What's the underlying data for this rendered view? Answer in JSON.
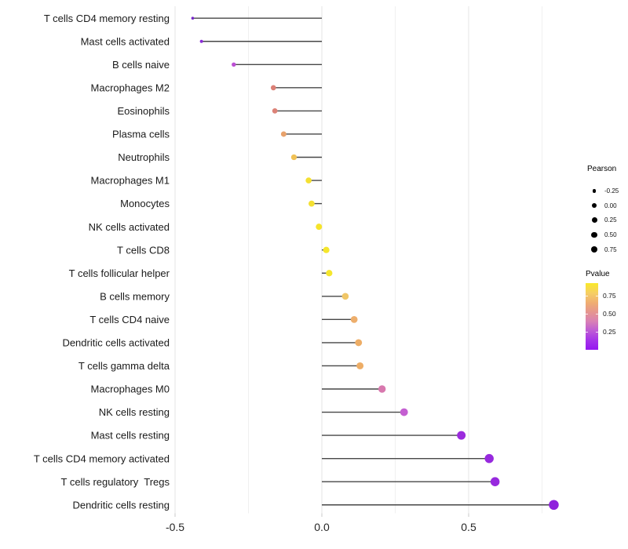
{
  "chart_data": {
    "type": "scatter",
    "variant": "lollipop",
    "title": "",
    "xlabel": "",
    "ylabel": "",
    "x_tick_labels": [
      "-0.5",
      "0.0",
      "0.5"
    ],
    "x_tick_values": [
      -0.5,
      0.0,
      0.5
    ],
    "x_minor_gridlines": [
      -0.25,
      0.25,
      0.75
    ],
    "xlim": [
      -0.51,
      0.86
    ],
    "grid": true,
    "legend_position": "right",
    "categories": [
      "T cells CD4 memory resting",
      "Mast cells activated",
      "B cells naive",
      "Macrophages M2",
      "Eosinophils",
      "Plasma cells",
      "Neutrophils",
      "Macrophages M1",
      "Monocytes",
      "NK cells activated",
      "T cells CD8",
      "T cells follicular helper",
      "B cells memory",
      "T cells CD4 naive",
      "Dendritic cells activated",
      "T cells gamma delta",
      "Macrophages M0",
      "NK cells resting",
      "Mast cells resting",
      "T cells CD4 memory activated",
      "T cells regulatory  Tregs",
      "Dendritic cells resting"
    ],
    "series": [
      {
        "name": "Pearson correlation",
        "values": [
          -0.44,
          -0.41,
          -0.3,
          -0.165,
          -0.16,
          -0.13,
          -0.095,
          -0.045,
          -0.035,
          -0.01,
          0.015,
          0.025,
          0.08,
          0.11,
          0.125,
          0.13,
          0.205,
          0.28,
          0.475,
          0.57,
          0.59,
          0.79
        ]
      }
    ],
    "dot_colors": [
      "#7627C8",
      "#8A2BD8",
      "#BC4FD4",
      "#DB8076",
      "#DC8277",
      "#E8A26C",
      "#F0C156",
      "#F4E032",
      "#F4E032",
      "#F6E42A",
      "#F5E62C",
      "#F5E62C",
      "#F0C667",
      "#EDAE6C",
      "#EDAD66",
      "#EDAD66",
      "#D878AE",
      "#C45FD1",
      "#9B2BDD",
      "#9729DE",
      "#9729DE",
      "#8F21DC"
    ],
    "stem_color": "#474747",
    "gridline_major_color": "#E4E4E4",
    "gridline_minor_color": "#F0F0F0",
    "size_legend": {
      "title": "Pearson",
      "labels": [
        "-0.25",
        "0.00",
        "0.25",
        "0.50",
        "0.75"
      ],
      "radii": [
        2.2,
        3.0,
        3.5,
        3.9,
        4.3
      ],
      "dot_color": "#000000"
    },
    "color_legend": {
      "title": "Pvalue",
      "labels": [
        "0.75",
        "0.50",
        "0.25"
      ],
      "label_offsets": [
        11.5,
        34.5,
        57.5
      ],
      "tick_offsets": [
        16,
        39,
        62
      ],
      "gradient_stops": [
        {
          "color": "#F9E929",
          "pos": 0
        },
        {
          "color": "#F6CE64",
          "pos": 15
        },
        {
          "color": "#EFAC72",
          "pos": 30
        },
        {
          "color": "#E49393",
          "pos": 45
        },
        {
          "color": "#D981B4",
          "pos": 57
        },
        {
          "color": "#C05FD3",
          "pos": 70
        },
        {
          "color": "#A635E8",
          "pos": 85
        },
        {
          "color": "#9616F0",
          "pos": 100
        }
      ]
    }
  }
}
